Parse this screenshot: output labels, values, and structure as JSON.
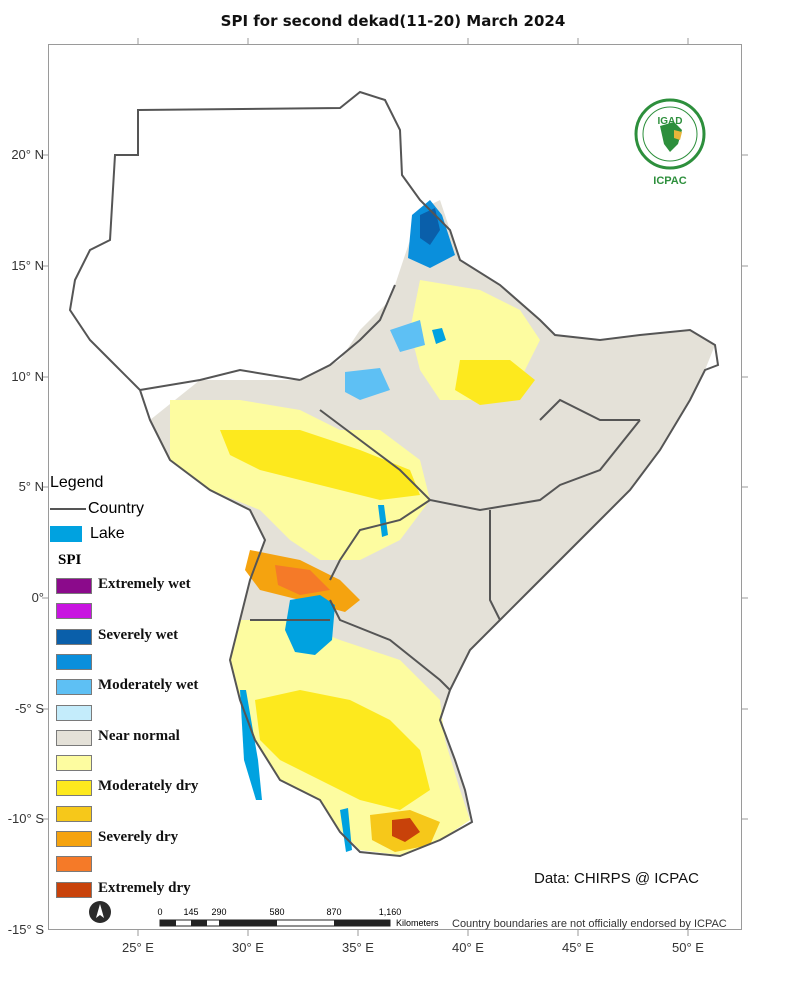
{
  "title": "SPI  for second dekad(11-20) March 2024",
  "axes": {
    "y_labels": [
      "20° N",
      "15° N",
      "10° N",
      "5° N",
      "0°",
      "-5° S",
      "-10° S",
      "-15° S"
    ],
    "x_labels": [
      "25° E",
      "30° E",
      "35° E",
      "40° E",
      "45° E",
      "50° E"
    ]
  },
  "legend": {
    "title": "Legend",
    "country_label": "Country",
    "lake_label": "Lake",
    "spi_title": "SPI",
    "classes": [
      {
        "label": "Extremely wet",
        "color": "#8b0a8b"
      },
      {
        "label": "",
        "color": "#c814e0"
      },
      {
        "label": "Severely wet",
        "color": "#0a5faa"
      },
      {
        "label": "",
        "color": "#0a8fdc"
      },
      {
        "label": "Moderately wet",
        "color": "#5ec0f4"
      },
      {
        "label": "",
        "color": "#c4ecfb"
      },
      {
        "label": "Near normal",
        "color": "#e4e1d8"
      },
      {
        "label": "",
        "color": "#fdfca0"
      },
      {
        "label": "Moderately dry",
        "color": "#fde91e"
      },
      {
        "label": "",
        "color": "#f6c81a"
      },
      {
        "label": "Severely dry",
        "color": "#f5a30f"
      },
      {
        "label": "",
        "color": "#f57a28"
      },
      {
        "label": "Extremely dry",
        "color": "#c8420a"
      }
    ]
  },
  "logo": {
    "top_text": "IGAD",
    "bottom_text": "ICPAC"
  },
  "credit": "Data: CHIRPS @ ICPAC",
  "disclaimer": "Country boundaries are not officially endorsed by ICPAC",
  "scale": {
    "ticks": [
      "0",
      "145",
      "290",
      "580",
      "870",
      "1,160"
    ],
    "unit": "Kilometers"
  },
  "colors": {
    "country_line": "#555555",
    "lake": "#00a2e0"
  }
}
